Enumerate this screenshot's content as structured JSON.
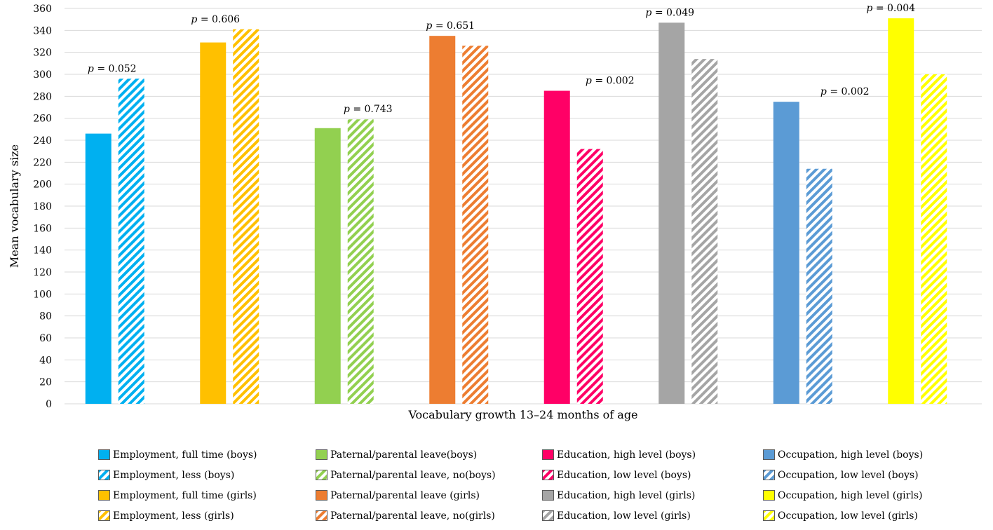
{
  "chart_data": {
    "type": "bar",
    "title": "",
    "xlabel": "Vocabulary growth 13–24 months of age",
    "ylabel": "Mean vocabulary size",
    "ylim": [
      0,
      360
    ],
    "ytick_step": 20,
    "grid": true,
    "legend_position": "bottom",
    "groups": [
      {
        "p_label": "p = 0.052",
        "bars": [
          {
            "name": "Employment, full time (boys)",
            "value": 246,
            "color": "#00B0F0",
            "hatched": false
          },
          {
            "name": "Employment, less (boys)",
            "value": 296,
            "color": "#00B0F0",
            "hatched": true
          }
        ]
      },
      {
        "p_label": "p = 0.606",
        "bars": [
          {
            "name": "Employment, full time (girls)",
            "value": 329,
            "color": "#FFC000",
            "hatched": false
          },
          {
            "name": "Employment, less (girls)",
            "value": 341,
            "color": "#FFC000",
            "hatched": true
          }
        ]
      },
      {
        "p_label": "p = 0.743",
        "bars": [
          {
            "name": "Paternal/parental leave(boys)",
            "value": 251,
            "color": "#92D050",
            "hatched": false
          },
          {
            "name": "Paternal/parental leave, no(boys)",
            "value": 259,
            "color": "#92D050",
            "hatched": true
          }
        ]
      },
      {
        "p_label": "p = 0.651",
        "bars": [
          {
            "name": "Paternal/parental leave (girls)",
            "value": 335,
            "color": "#ED7D31",
            "hatched": false
          },
          {
            "name": "Paternal/parental leave, no(girls)",
            "value": 326,
            "color": "#ED7D31",
            "hatched": true
          }
        ]
      },
      {
        "p_label": "p = 0.002",
        "bars": [
          {
            "name": "Education, high level (boys)",
            "value": 285,
            "color": "#FF0066",
            "hatched": false
          },
          {
            "name": "Education, low level (boys)",
            "value": 232,
            "color": "#FF0066",
            "hatched": true
          }
        ]
      },
      {
        "p_label": "p = 0.049",
        "bars": [
          {
            "name": "Education, high level (girls)",
            "value": 347,
            "color": "#A5A5A5",
            "hatched": false
          },
          {
            "name": "Education, low level (girls)",
            "value": 314,
            "color": "#A5A5A5",
            "hatched": true
          }
        ]
      },
      {
        "p_label": "p = 0.002",
        "bars": [
          {
            "name": "Occupation, high level (boys)",
            "value": 275,
            "color": "#5B9BD5",
            "hatched": false
          },
          {
            "name": "Occupation, low level (boys)",
            "value": 214,
            "color": "#5B9BD5",
            "hatched": true
          }
        ]
      },
      {
        "p_label": "p = 0.004",
        "bars": [
          {
            "name": "Occupation, high level (girls)",
            "value": 351,
            "color": "#FFFF00",
            "hatched": false
          },
          {
            "name": "Occupation, low level (girls)",
            "value": 300,
            "color": "#FFFF00",
            "hatched": true
          }
        ]
      }
    ],
    "legend_columns": [
      [
        {
          "label": "Employment, full time (boys)",
          "color": "#00B0F0",
          "hatched": false
        },
        {
          "label": "Employment, less (boys)",
          "color": "#00B0F0",
          "hatched": true
        },
        {
          "label": "Employment, full time (girls)",
          "color": "#FFC000",
          "hatched": false
        },
        {
          "label": "Employment, less (girls)",
          "color": "#FFC000",
          "hatched": true
        }
      ],
      [
        {
          "label": "Paternal/parental leave(boys)",
          "color": "#92D050",
          "hatched": false
        },
        {
          "label": "Paternal/parental leave, no(boys)",
          "color": "#92D050",
          "hatched": true
        },
        {
          "label": "Paternal/parental leave (girls)",
          "color": "#ED7D31",
          "hatched": false
        },
        {
          "label": "Paternal/parental leave, no(girls)",
          "color": "#ED7D31",
          "hatched": true
        }
      ],
      [
        {
          "label": "Education, high level (boys)",
          "color": "#FF0066",
          "hatched": false
        },
        {
          "label": "Education, low level (boys)",
          "color": "#FF0066",
          "hatched": true
        },
        {
          "label": "Education, high level (girls)",
          "color": "#A5A5A5",
          "hatched": false
        },
        {
          "label": "Education, low level (girls)",
          "color": "#A5A5A5",
          "hatched": true
        }
      ],
      [
        {
          "label": "Occupation, high level (boys)",
          "color": "#5B9BD5",
          "hatched": false
        },
        {
          "label": "Occupation, low level (boys)",
          "color": "#5B9BD5",
          "hatched": true
        },
        {
          "label": "Occupation, high level (girls)",
          "color": "#FFFF00",
          "hatched": false
        },
        {
          "label": "Occupation, low level (girls)",
          "color": "#FFFF00",
          "hatched": true
        }
      ]
    ]
  }
}
